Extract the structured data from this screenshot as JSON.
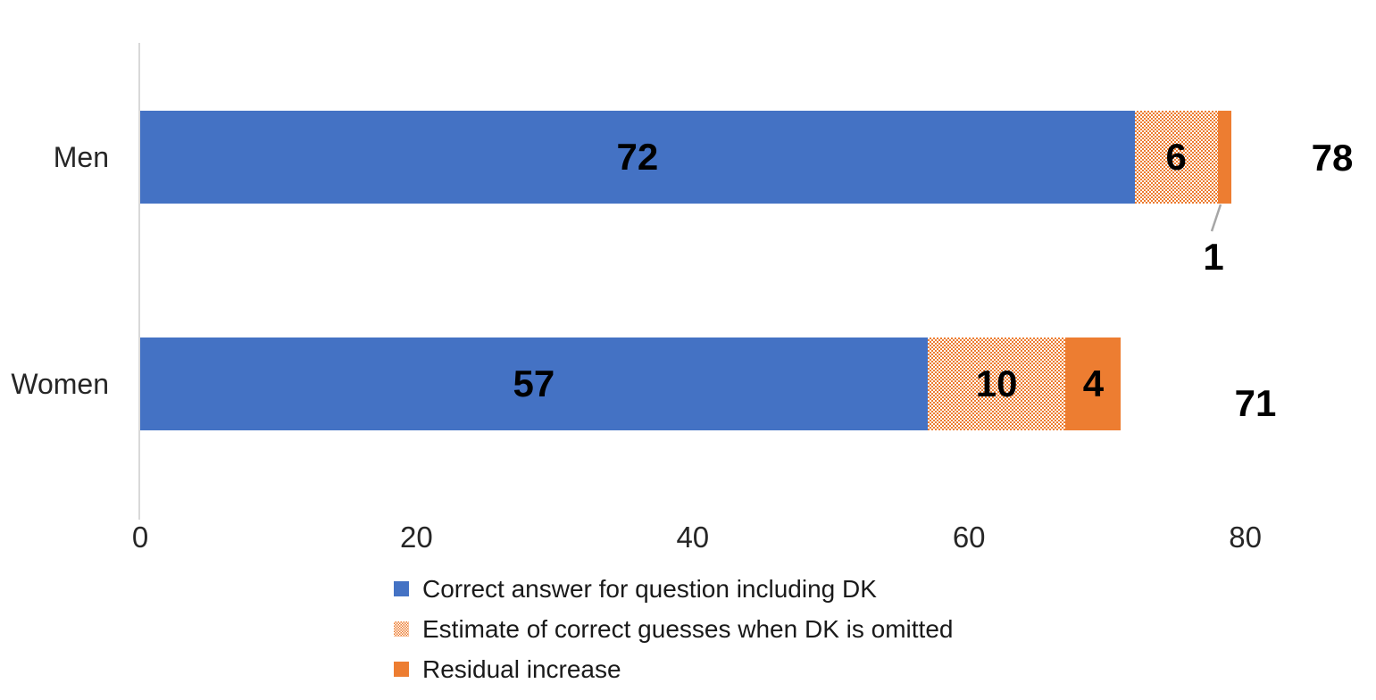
{
  "chart_data": {
    "type": "bar",
    "orientation": "horizontal-stacked",
    "title": "",
    "categories": [
      "Men",
      "Women"
    ],
    "series": [
      {
        "name": "Correct answer for question including DK",
        "color_key": "blue",
        "values": [
          72,
          57
        ]
      },
      {
        "name": "Estimate of correct guesses when DK is omitted",
        "color_key": "dotted",
        "values": [
          6,
          10
        ]
      },
      {
        "name": "Residual increase",
        "color_key": "orange",
        "values": [
          1,
          4
        ]
      }
    ],
    "totals": [
      78,
      71
    ],
    "callout": {
      "category_index": 0,
      "series_index": 2,
      "note": "value shown outside bar with leader line"
    },
    "x_ticks": [
      0,
      20,
      40,
      60,
      80
    ],
    "xlim": [
      0,
      80
    ],
    "grid": false,
    "legend_position": "bottom-left"
  },
  "colors": {
    "blue": "#4472C4",
    "orange": "#ED7D31",
    "axis_line": "#D9D9D9",
    "leader_line": "#A6A6A6",
    "tick_text": "#262626",
    "value_text": "#000000"
  }
}
